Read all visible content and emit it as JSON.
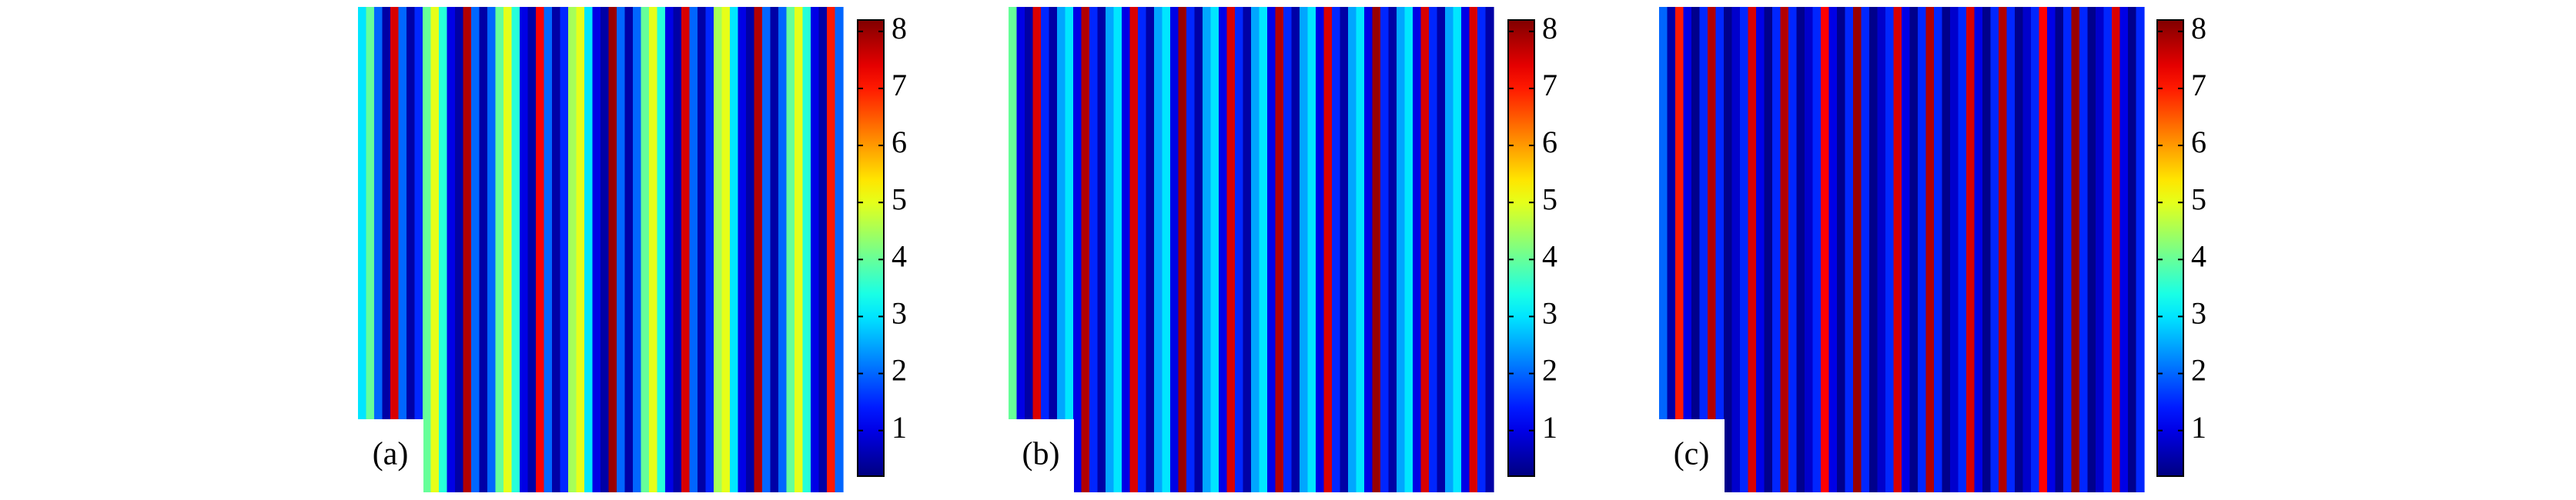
{
  "chart_data": [
    {
      "type": "heatmap",
      "label": "(a)",
      "colormap": "jet",
      "clim": [
        0.2,
        8.2
      ],
      "cticks": [
        1,
        2,
        3,
        4,
        5,
        6,
        7,
        8
      ],
      "values": [
        3,
        4,
        2,
        0.5,
        7.5,
        2,
        0.5,
        1.5,
        4,
        5,
        3.5,
        1,
        0.5,
        7.8,
        2,
        0.5,
        2,
        4,
        5,
        3.5,
        1,
        0.5,
        7.2,
        2,
        0.5,
        1.5,
        4.5,
        5,
        3,
        1,
        0.5,
        8,
        2,
        0.5,
        2,
        4,
        5,
        3.5,
        1,
        0.5,
        7.5,
        2,
        0.5,
        1.5,
        4.5,
        5,
        3,
        1,
        0.5,
        7.8,
        2,
        0.5,
        2,
        4,
        5,
        3.5,
        1,
        0.5,
        7,
        2
      ]
    },
    {
      "type": "heatmap",
      "label": "(b)",
      "colormap": "jet",
      "clim": [
        0.2,
        8.2
      ],
      "cticks": [
        1,
        2,
        3,
        4,
        5,
        6,
        7,
        8
      ],
      "values": [
        4,
        1,
        0.5,
        7.5,
        1.5,
        0.5,
        2.5,
        3,
        1,
        7.8,
        1.5,
        0.5,
        2.5,
        3,
        1,
        7.5,
        1.5,
        0.5,
        2.5,
        3,
        1,
        8,
        1.5,
        0.5,
        2.5,
        3,
        1,
        7.5,
        1.5,
        0.5,
        2.5,
        3,
        1,
        7.8,
        1.5,
        0.5,
        2.5,
        3,
        1,
        7.5,
        1.5,
        0.5,
        2.5,
        3,
        1,
        8,
        1.5,
        0.5,
        2.5,
        3,
        1,
        7.5,
        1.5,
        0.5,
        2.5,
        3,
        1,
        7.5,
        1.5,
        0.5
      ]
    },
    {
      "type": "heatmap",
      "label": "(c)",
      "colormap": "jet",
      "clim": [
        0.2,
        8.2
      ],
      "cticks": [
        1,
        2,
        3,
        4,
        5,
        6,
        7,
        8
      ],
      "values": [
        2,
        0.5,
        7,
        1,
        0.3,
        1.5,
        7.8,
        1.5,
        0.3,
        0.8,
        1.5,
        7.5,
        1,
        0.3,
        1.5,
        7.8,
        1.5,
        0.3,
        0.8,
        1.5,
        7.2,
        1,
        0.3,
        1.5,
        8,
        1.5,
        0.3,
        0.8,
        1.5,
        7.5,
        1,
        0.3,
        1.5,
        7.8,
        1.5,
        0.3,
        0.8,
        1.5,
        7.5,
        1,
        0.3,
        1.5,
        7.8,
        1.5,
        0.3,
        0.8,
        1.5,
        7.2,
        1,
        0.3,
        1.5,
        8,
        1.5,
        0.3,
        0.8,
        1.5,
        7.5,
        1,
        0.3,
        1.5
      ]
    }
  ]
}
